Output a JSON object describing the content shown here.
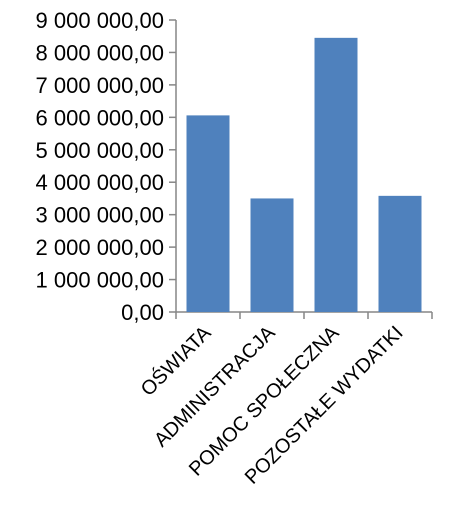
{
  "chart_data": {
    "type": "bar",
    "categories": [
      "OŚWIATA",
      "ADMINISTRACJA",
      "POMOC SPOŁECZNA",
      "POZOSTAŁE WYDATKI"
    ],
    "series": [
      {
        "values": [
          6060000,
          3500000,
          8450000,
          3580000
        ]
      }
    ],
    "y_tick_labels": [
      "0,00",
      "1 000 000,00",
      "2 000 000,00",
      "3 000 000,00",
      "4 000 000,00",
      "5 000 000,00",
      "6 000 000,00",
      "7 000 000,00",
      "8 000 000,00",
      "9 000 000,00"
    ],
    "ylim": [
      0,
      9000000
    ],
    "ytick_step": 1000000,
    "grid": false,
    "legend": "none",
    "title": "",
    "xlabel": "",
    "ylabel": ""
  },
  "colors": {
    "bar": "#4F81BD",
    "axis": "#868686",
    "text": "#000000"
  }
}
